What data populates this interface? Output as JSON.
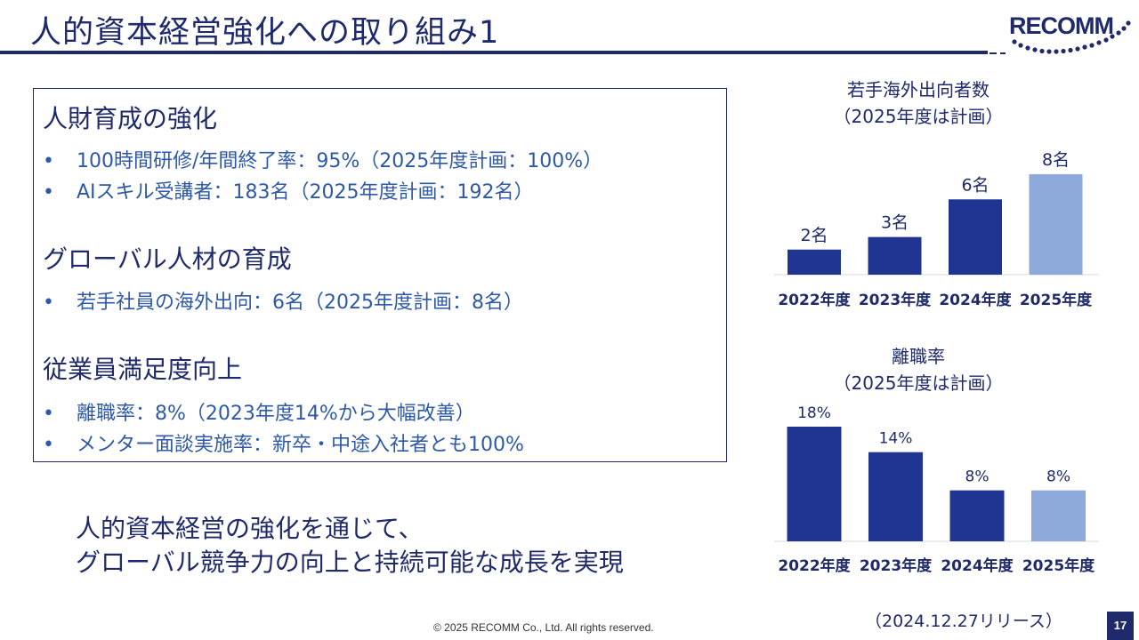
{
  "slide": {
    "title": "人的資本経営強化への取り組み1",
    "logo_text": "RECOMM",
    "sections": [
      {
        "heading": "人財育成の強化",
        "bullets": [
          "100時間研修/年間終了率：95%（2025年度計画：100%）",
          "AIスキル受講者：183名（2025年度計画：192名）"
        ]
      },
      {
        "heading": "グローバル人材の育成",
        "bullets": [
          "若手社員の海外出向：6名（2025年度計画：8名）"
        ]
      },
      {
        "heading": "従業員満足度向上",
        "bullets": [
          "離職率：8%（2023年度14%から大幅改善）",
          "メンター面談実施率：新卒・中途入社者とも100%"
        ]
      }
    ],
    "bullet_marker": "•",
    "closing_line1": "人的資本経営の強化を通じて、",
    "closing_line2": "グローバル競争力の向上と持続可能な成長を実現",
    "footer_copyright": "© 2025 RECOMM Co., Ltd. All rights reserved.",
    "release_note": "（2024.12.27リリース）",
    "page_number": "17"
  },
  "chart_data": [
    {
      "type": "bar",
      "title": "若手海外出向者数",
      "subtitle": "（2025年度は計画）",
      "categories": [
        "2022年度",
        "2023年度",
        "2024年度",
        "2025年度"
      ],
      "values": [
        2,
        3,
        6,
        8
      ],
      "labels": [
        "2名",
        "3名",
        "6名",
        "8名"
      ],
      "ylim": [
        0,
        8.5
      ],
      "bar_colors": [
        "#1f3591",
        "#1f3591",
        "#1f3591",
        "#8eaadb"
      ]
    },
    {
      "type": "bar",
      "title": "離職率",
      "subtitle": "（2025年度は計画）",
      "categories": [
        "2022年度",
        "2023年度",
        "2024年度",
        "2025年度"
      ],
      "values": [
        18,
        14,
        8,
        8
      ],
      "labels": [
        "18%",
        "14%",
        "8%",
        "8%"
      ],
      "ylim": [
        0,
        18
      ],
      "bar_colors": [
        "#1f3591",
        "#1f3591",
        "#1f3591",
        "#8eaadb"
      ]
    }
  ],
  "colors": {
    "primary": "#1f2a6b",
    "bullet_text": "#2e59a8",
    "bar": "#1f3591",
    "bar_plan": "#8eaadb"
  }
}
